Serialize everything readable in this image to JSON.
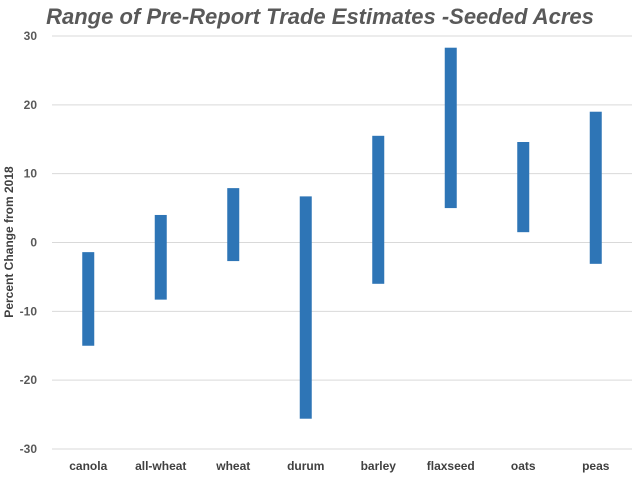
{
  "chart_data": {
    "type": "bar",
    "subtype": "floating-range",
    "title": "Range of Pre-Report Trade Estimates -Seeded Acres",
    "ylabel": "Percent Change from 2018",
    "xlabel": "",
    "ylim": [
      -30,
      30
    ],
    "yticks": [
      -30,
      -20,
      -10,
      0,
      10,
      20,
      30
    ],
    "grid": true,
    "categories": [
      "canola",
      "all-wheat",
      "wheat",
      "durum",
      "barley",
      "flaxseed",
      "oats",
      "peas"
    ],
    "series": [
      {
        "low": [
          -15.0,
          -8.3,
          -2.7,
          -25.6,
          -6.0,
          5.0,
          1.5,
          -3.1
        ],
        "high": [
          -1.4,
          4.0,
          7.9,
          6.7,
          15.5,
          28.3,
          14.6,
          19.0
        ],
        "color": "#2E75B6"
      }
    ]
  }
}
